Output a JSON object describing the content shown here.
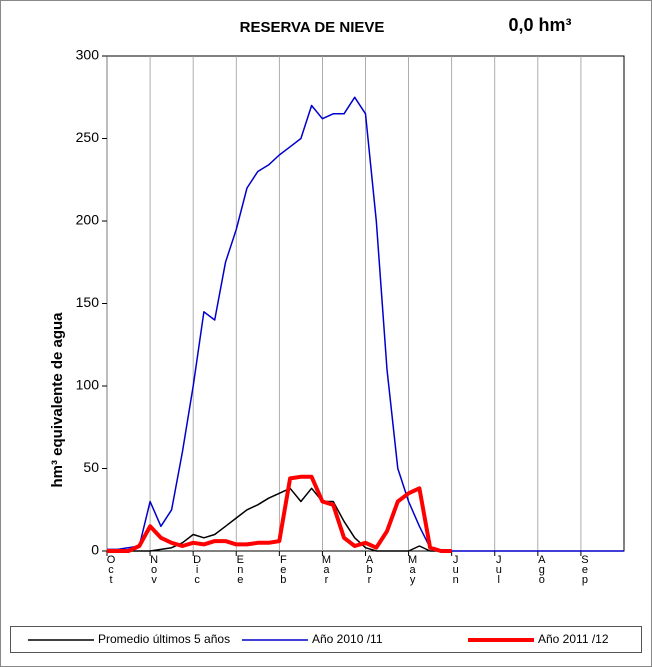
{
  "chart_data": {
    "type": "line",
    "title": "RESERVA DE NIEVE",
    "annotation": "0,0 hm³",
    "y_label": "hm³ equivalente de agua",
    "x": [
      0,
      0.25,
      0.5,
      0.75,
      1,
      1.25,
      1.5,
      1.75,
      2,
      2.25,
      2.5,
      2.75,
      3,
      3.25,
      3.5,
      3.75,
      4,
      4.25,
      4.5,
      4.75,
      5,
      5.25,
      5.5,
      5.75,
      6,
      6.25,
      6.5,
      6.75,
      7,
      7.25,
      7.5,
      7.75,
      8,
      8.25,
      8.5,
      8.75,
      9,
      9.25,
      9.5,
      9.75,
      10,
      10.25,
      10.5,
      10.75,
      11,
      11.25,
      11.5,
      11.75,
      12
    ],
    "xlim": [
      0,
      12
    ],
    "xticks": [
      {
        "value": 0,
        "label": "Oct"
      },
      {
        "value": 1,
        "label": "Nov"
      },
      {
        "value": 2,
        "label": "Dic"
      },
      {
        "value": 3,
        "label": "Ene"
      },
      {
        "value": 4,
        "label": "Feb"
      },
      {
        "value": 5,
        "label": "Mar"
      },
      {
        "value": 6,
        "label": "Abr"
      },
      {
        "value": 7,
        "label": "May"
      },
      {
        "value": 8,
        "label": "Jun"
      },
      {
        "value": 9,
        "label": "Jul"
      },
      {
        "value": 10,
        "label": "Ago"
      },
      {
        "value": 11,
        "label": "Sep"
      }
    ],
    "ylim": [
      0,
      300
    ],
    "yticks": [
      0,
      50,
      100,
      150,
      200,
      250,
      300
    ],
    "grid": "x",
    "series": [
      {
        "name": "Promedio últimos 5 años",
        "color": "#000000",
        "width": 1.5,
        "values": [
          0,
          0,
          0,
          0,
          0,
          1,
          2,
          5,
          10,
          8,
          10,
          15,
          20,
          25,
          28,
          32,
          35,
          38,
          30,
          38,
          30,
          30,
          18,
          8,
          2,
          0,
          0,
          0,
          0,
          3,
          0,
          0,
          0,
          null,
          null,
          null,
          null,
          null,
          null,
          null,
          null,
          null,
          null,
          null,
          null,
          null,
          null,
          null,
          null
        ]
      },
      {
        "name": "Año 2010 /11",
        "color": "#0000cc",
        "width": 1.5,
        "values": [
          1,
          1,
          2,
          3,
          30,
          15,
          25,
          60,
          100,
          145,
          140,
          175,
          195,
          220,
          230,
          234,
          240,
          245,
          250,
          270,
          262,
          265,
          265,
          275,
          265,
          200,
          110,
          50,
          30,
          15,
          2,
          0,
          0,
          0,
          0,
          0,
          0,
          0,
          0,
          0,
          0,
          0,
          0,
          0,
          0,
          0,
          0,
          0,
          0
        ]
      },
      {
        "name": "Año 2011 /12",
        "color": "#ff0000",
        "width": 4,
        "values": [
          0,
          0,
          0,
          3,
          15,
          8,
          5,
          3,
          5,
          4,
          6,
          6,
          4,
          4,
          5,
          5,
          6,
          44,
          45,
          45,
          30,
          28,
          8,
          3,
          5,
          2,
          12,
          30,
          35,
          38,
          2,
          0,
          0,
          null,
          null,
          null,
          null,
          null,
          null,
          null,
          null,
          null,
          null,
          null,
          null,
          null,
          null,
          null,
          null
        ]
      }
    ]
  }
}
